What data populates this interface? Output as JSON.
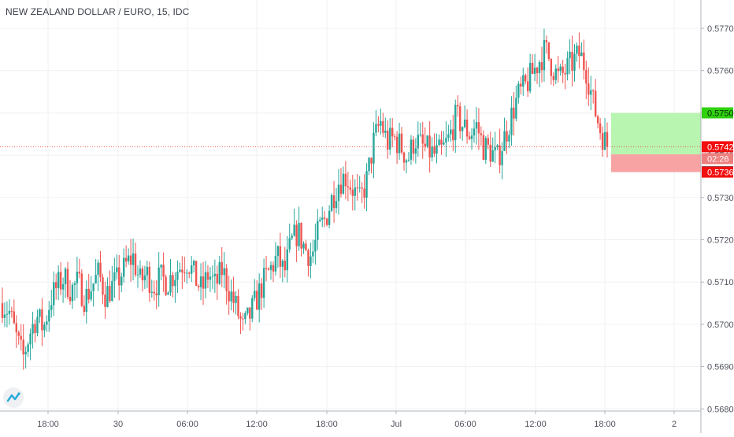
{
  "header": {
    "title": "NEW ZEALAND DOLLAR / EURO, 15, IDC"
  },
  "price_scale": {
    "labels": [
      "0.5770",
      "0.5760",
      "0.5750",
      "0.5740",
      "0.5730",
      "0.5720",
      "0.5710",
      "0.5700",
      "0.5690",
      "0.5680"
    ]
  },
  "markers": {
    "take_profit": "0.5750",
    "last_price": "0.5742",
    "countdown": "02:26",
    "entry": "0.5740",
    "stop_loss": "0.5736"
  },
  "colors": {
    "up": "#26a69a",
    "down": "#ef5350",
    "take_profit_zone": "#b8f5b0",
    "stop_loss_zone": "#f7a3a3",
    "take_profit_badge": "#2fd10f",
    "stop_loss_badge": "#f20f0f",
    "entry_badge": "#5d6068",
    "last_price_line": "#ef5350"
  },
  "chart_data": {
    "type": "candlestick",
    "title": "NEW ZEALAND DOLLAR / EURO, 15, IDC",
    "x_tick_labels": [
      "18:00",
      "30",
      "06:00",
      "12:00",
      "18:00",
      "Jul",
      "06:00",
      "12:00",
      "18:00",
      "2"
    ],
    "y_tick_labels": [
      "0.5770",
      "0.5760",
      "0.5750",
      "0.5740",
      "0.5730",
      "0.5720",
      "0.5710",
      "0.5700",
      "0.5690",
      "0.5680"
    ],
    "ylim": [
      0.5678,
      0.5777
    ],
    "gridlines": true,
    "close_path": [
      0.5705,
      0.5703,
      0.5697,
      0.5692,
      0.5698,
      0.5702,
      0.5699,
      0.5706,
      0.5709,
      0.5711,
      0.5708,
      0.571,
      0.5706,
      0.5709,
      0.5712,
      0.5707,
      0.5709,
      0.5711,
      0.5714,
      0.5716,
      0.571,
      0.5712,
      0.5709,
      0.5711,
      0.571,
      0.5712,
      0.5714,
      0.5715,
      0.5711,
      0.5708,
      0.5712,
      0.5709,
      0.5713,
      0.5708,
      0.5704,
      0.5699,
      0.5702,
      0.5706,
      0.571,
      0.5713,
      0.5716,
      0.5712,
      0.5719,
      0.5722,
      0.5718,
      0.5716,
      0.5722,
      0.5725,
      0.573,
      0.5734,
      0.5735,
      0.5732,
      0.5729,
      0.5734,
      0.5743,
      0.5748,
      0.5743,
      0.5744,
      0.5742,
      0.5739,
      0.5744,
      0.5742,
      0.5741,
      0.574,
      0.5741,
      0.5744,
      0.5749,
      0.5747,
      0.5745,
      0.5747,
      0.5742,
      0.5741,
      0.5739,
      0.5744,
      0.5749,
      0.5754,
      0.5756,
      0.5759,
      0.5762,
      0.5765,
      0.5761,
      0.5758,
      0.576,
      0.5762,
      0.5764,
      0.576,
      0.5752,
      0.5746,
      0.5742
    ],
    "trade_levels": {
      "take_profit": 0.575,
      "entry": 0.574,
      "stop_loss": 0.5736,
      "last": 0.5742
    }
  }
}
